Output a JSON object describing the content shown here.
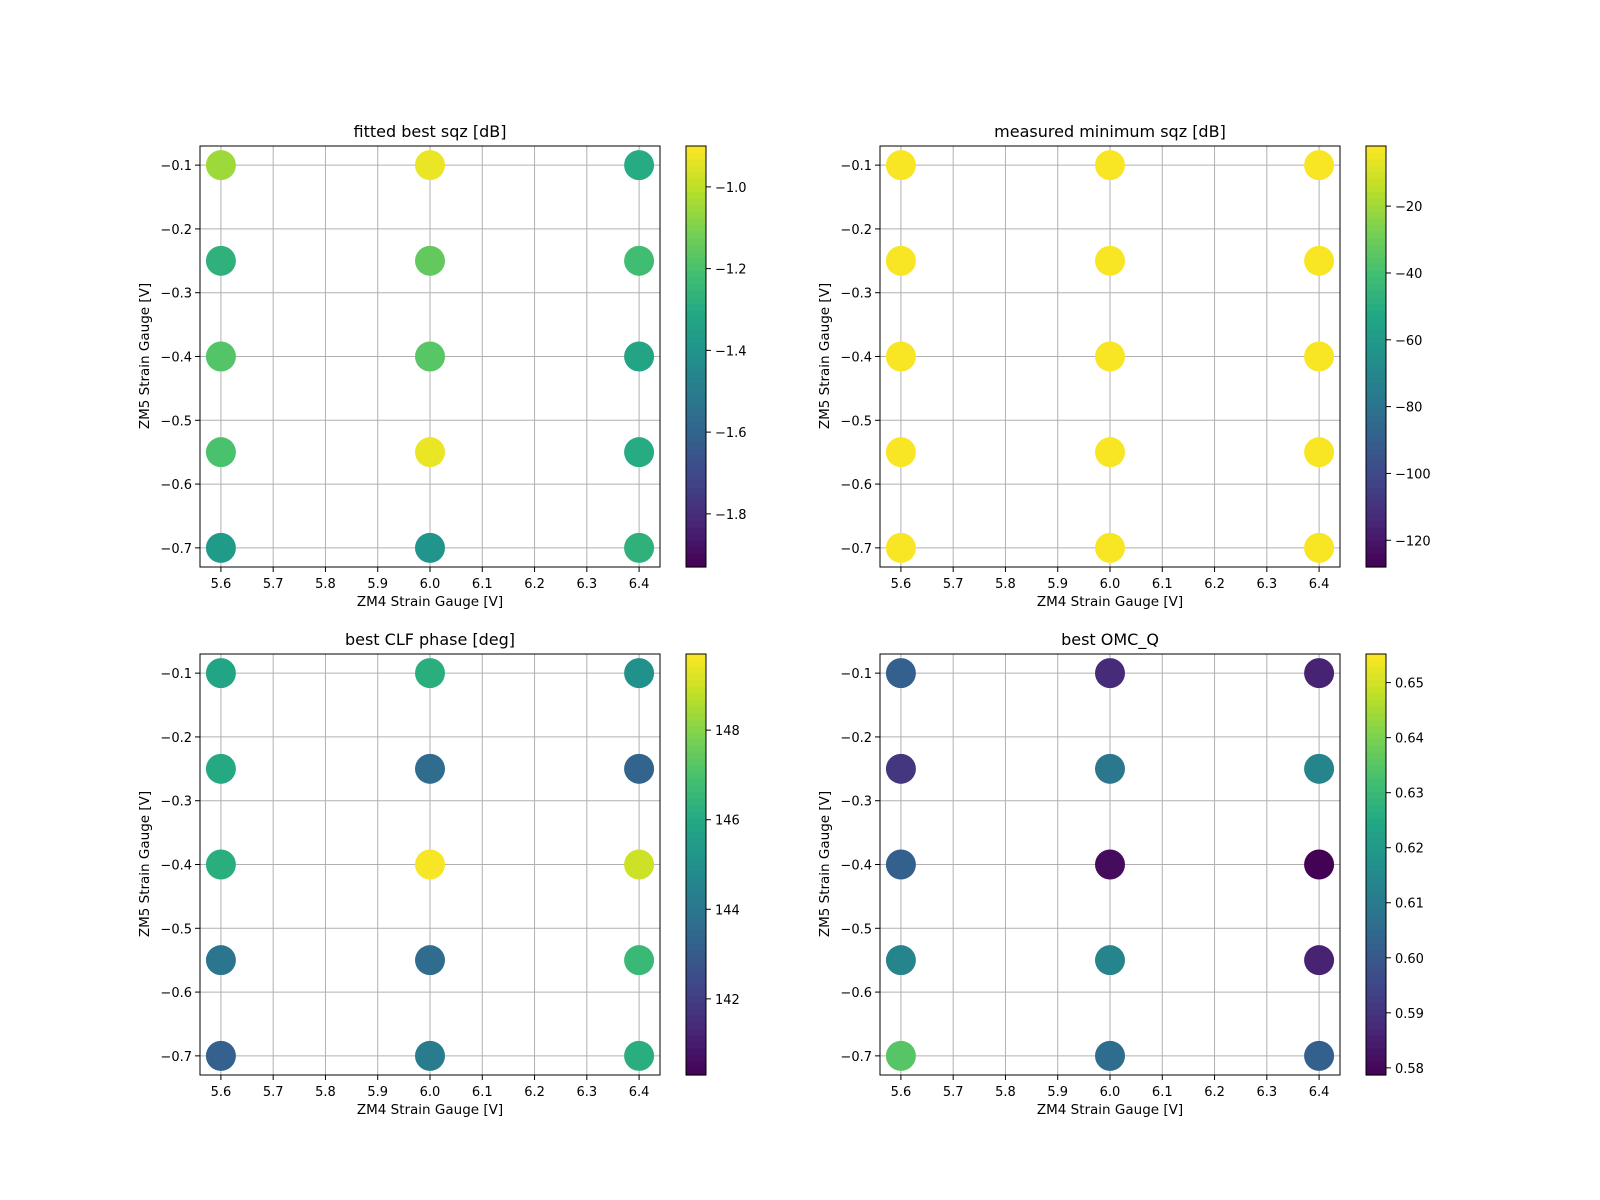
{
  "chart_data": [
    {
      "type": "scatter",
      "title": "fitted best sqz [dB]",
      "xlabel": "ZM4 Strain Gauge [V]",
      "ylabel": "ZM5 Strain Gauge [V]",
      "xlim": [
        5.56,
        6.44
      ],
      "ylim": [
        -0.73,
        -0.07
      ],
      "xticks": [
        "5.6",
        "5.7",
        "5.8",
        "5.9",
        "6.0",
        "6.1",
        "6.2",
        "6.3",
        "6.4"
      ],
      "yticks": [
        "−0.1",
        "−0.2",
        "−0.3",
        "−0.4",
        "−0.5",
        "−0.6",
        "−0.7"
      ],
      "grid": true,
      "colormap": "viridis",
      "clim": [
        -1.93,
        -0.9
      ],
      "cbar_ticks": [
        "−1.0",
        "−1.2",
        "−1.4",
        "−1.6",
        "−1.8"
      ],
      "points": [
        {
          "x": 5.6,
          "y": -0.1,
          "c": -1.05
        },
        {
          "x": 5.6,
          "y": -0.25,
          "c": -1.27
        },
        {
          "x": 5.6,
          "y": -0.4,
          "c": -1.18
        },
        {
          "x": 5.6,
          "y": -0.55,
          "c": -1.2
        },
        {
          "x": 5.6,
          "y": -0.7,
          "c": -1.37
        },
        {
          "x": 6.0,
          "y": -0.1,
          "c": -0.93
        },
        {
          "x": 6.0,
          "y": -0.25,
          "c": -1.15
        },
        {
          "x": 6.0,
          "y": -0.4,
          "c": -1.17
        },
        {
          "x": 6.0,
          "y": -0.55,
          "c": -0.93
        },
        {
          "x": 6.0,
          "y": -0.7,
          "c": -1.4
        },
        {
          "x": 6.4,
          "y": -0.1,
          "c": -1.3
        },
        {
          "x": 6.4,
          "y": -0.25,
          "c": -1.22
        },
        {
          "x": 6.4,
          "y": -0.4,
          "c": -1.33
        },
        {
          "x": 6.4,
          "y": -0.55,
          "c": -1.3
        },
        {
          "x": 6.4,
          "y": -0.7,
          "c": -1.27
        }
      ]
    },
    {
      "type": "scatter",
      "title": "measured minimum sqz [dB]",
      "xlabel": "ZM4 Strain Gauge [V]",
      "ylabel": "ZM5 Strain Gauge [V]",
      "xlim": [
        5.56,
        6.44
      ],
      "ylim": [
        -0.73,
        -0.07
      ],
      "xticks": [
        "5.6",
        "5.7",
        "5.8",
        "5.9",
        "6.0",
        "6.1",
        "6.2",
        "6.3",
        "6.4"
      ],
      "yticks": [
        "−0.1",
        "−0.2",
        "−0.3",
        "−0.4",
        "−0.5",
        "−0.6",
        "−0.7"
      ],
      "grid": true,
      "colormap": "viridis",
      "clim": [
        -128,
        -2
      ],
      "cbar_ticks": [
        "−20",
        "−40",
        "−60",
        "−80",
        "−100",
        "−120"
      ],
      "points": [
        {
          "x": 5.6,
          "y": -0.1,
          "c": -3
        },
        {
          "x": 5.6,
          "y": -0.25,
          "c": -3
        },
        {
          "x": 5.6,
          "y": -0.4,
          "c": -3
        },
        {
          "x": 5.6,
          "y": -0.55,
          "c": -3
        },
        {
          "x": 5.6,
          "y": -0.7,
          "c": -3
        },
        {
          "x": 6.0,
          "y": -0.1,
          "c": -3
        },
        {
          "x": 6.0,
          "y": -0.25,
          "c": -3
        },
        {
          "x": 6.0,
          "y": -0.4,
          "c": -3
        },
        {
          "x": 6.0,
          "y": -0.55,
          "c": -3
        },
        {
          "x": 6.0,
          "y": -0.7,
          "c": -3
        },
        {
          "x": 6.4,
          "y": -0.1,
          "c": -3
        },
        {
          "x": 6.4,
          "y": -0.25,
          "c": -3
        },
        {
          "x": 6.4,
          "y": -0.4,
          "c": -3
        },
        {
          "x": 6.4,
          "y": -0.55,
          "c": -3
        },
        {
          "x": 6.4,
          "y": -0.7,
          "c": -3
        }
      ]
    },
    {
      "type": "scatter",
      "title": "best CLF phase [deg]",
      "xlabel": "ZM4 Strain Gauge [V]",
      "ylabel": "ZM5 Strain Gauge [V]",
      "xlim": [
        5.56,
        6.44
      ],
      "ylim": [
        -0.73,
        -0.07
      ],
      "xticks": [
        "5.6",
        "5.7",
        "5.8",
        "5.9",
        "6.0",
        "6.1",
        "6.2",
        "6.3",
        "6.4"
      ],
      "yticks": [
        "−0.1",
        "−0.2",
        "−0.3",
        "−0.4",
        "−0.5",
        "−0.6",
        "−0.7"
      ],
      "grid": true,
      "colormap": "viridis",
      "clim": [
        140.3,
        149.7
      ],
      "cbar_ticks": [
        "148",
        "146",
        "144",
        "142"
      ],
      "points": [
        {
          "x": 5.6,
          "y": -0.1,
          "c": 145.8
        },
        {
          "x": 5.6,
          "y": -0.25,
          "c": 146.0
        },
        {
          "x": 5.6,
          "y": -0.4,
          "c": 146.2
        },
        {
          "x": 5.6,
          "y": -0.55,
          "c": 144.0
        },
        {
          "x": 5.6,
          "y": -0.7,
          "c": 143.2
        },
        {
          "x": 6.0,
          "y": -0.1,
          "c": 146.2
        },
        {
          "x": 6.0,
          "y": -0.25,
          "c": 143.6
        },
        {
          "x": 6.0,
          "y": -0.4,
          "c": 149.6
        },
        {
          "x": 6.0,
          "y": -0.55,
          "c": 143.6
        },
        {
          "x": 6.0,
          "y": -0.7,
          "c": 144.2
        },
        {
          "x": 6.4,
          "y": -0.1,
          "c": 145.0
        },
        {
          "x": 6.4,
          "y": -0.25,
          "c": 143.3
        },
        {
          "x": 6.4,
          "y": -0.4,
          "c": 149.0
        },
        {
          "x": 6.4,
          "y": -0.55,
          "c": 146.6
        },
        {
          "x": 6.4,
          "y": -0.7,
          "c": 146.2
        }
      ]
    },
    {
      "type": "scatter",
      "title": "best OMC_Q",
      "xlabel": "ZM4 Strain Gauge [V]",
      "ylabel": "ZM5 Strain Gauge [V]",
      "xlim": [
        5.56,
        6.44
      ],
      "ylim": [
        -0.73,
        -0.07
      ],
      "xticks": [
        "5.6",
        "5.7",
        "5.8",
        "5.9",
        "6.0",
        "6.1",
        "6.2",
        "6.3",
        "6.4"
      ],
      "yticks": [
        "−0.1",
        "−0.2",
        "−0.3",
        "−0.4",
        "−0.5",
        "−0.6",
        "−0.7"
      ],
      "grid": true,
      "colormap": "viridis",
      "clim": [
        0.5787,
        0.6552
      ],
      "cbar_ticks": [
        "0.65",
        "0.64",
        "0.63",
        "0.62",
        "0.61",
        "0.60",
        "0.59",
        "0.58"
      ],
      "points": [
        {
          "x": 5.6,
          "y": -0.1,
          "c": 0.602
        },
        {
          "x": 5.6,
          "y": -0.25,
          "c": 0.591
        },
        {
          "x": 5.6,
          "y": -0.4,
          "c": 0.602
        },
        {
          "x": 5.6,
          "y": -0.55,
          "c": 0.613
        },
        {
          "x": 5.6,
          "y": -0.7,
          "c": 0.635
        },
        {
          "x": 6.0,
          "y": -0.1,
          "c": 0.588
        },
        {
          "x": 6.0,
          "y": -0.25,
          "c": 0.609
        },
        {
          "x": 6.0,
          "y": -0.4,
          "c": 0.581
        },
        {
          "x": 6.0,
          "y": -0.55,
          "c": 0.613
        },
        {
          "x": 6.0,
          "y": -0.7,
          "c": 0.606
        },
        {
          "x": 6.4,
          "y": -0.1,
          "c": 0.586
        },
        {
          "x": 6.4,
          "y": -0.25,
          "c": 0.613
        },
        {
          "x": 6.4,
          "y": -0.4,
          "c": 0.579
        },
        {
          "x": 6.4,
          "y": -0.55,
          "c": 0.586
        },
        {
          "x": 6.4,
          "y": -0.7,
          "c": 0.602
        }
      ]
    }
  ]
}
